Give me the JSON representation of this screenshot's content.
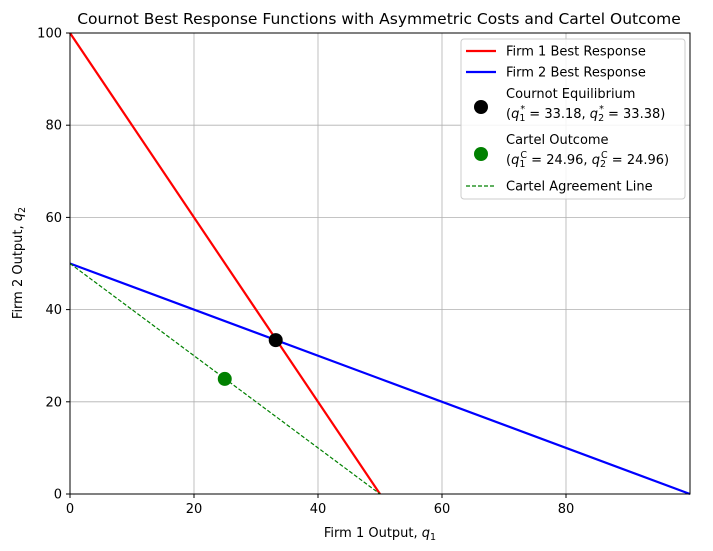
{
  "chart_data": {
    "type": "line",
    "title": "Cournot Best Response Functions with Asymmetric Costs and Cartel Outcome",
    "xlabel": "Firm 1 Output, q1",
    "ylabel": "Firm 2 Output, q2",
    "xlim": [
      0,
      100
    ],
    "ylim": [
      0,
      100
    ],
    "x_ticks": [
      0,
      20,
      40,
      60,
      80
    ],
    "y_ticks": [
      0,
      20,
      40,
      60,
      80,
      100
    ],
    "grid": true,
    "legend_position": "top-right",
    "series": [
      {
        "name": "Firm 1 Best Response",
        "kind": "line",
        "color": "#ff0000",
        "x": [
          0,
          50
        ],
        "y": [
          100,
          0
        ]
      },
      {
        "name": "Firm 2 Best Response",
        "kind": "line",
        "color": "#0000ff",
        "x": [
          0,
          100
        ],
        "y": [
          50,
          0
        ]
      },
      {
        "name": "Cartel Agreement Line",
        "kind": "dashed-line",
        "color": "#008000",
        "x": [
          0,
          50
        ],
        "y": [
          50,
          0
        ]
      },
      {
        "name": "Cournot Equilibrium",
        "kind": "point",
        "color": "#000000",
        "x": [
          33.18
        ],
        "y": [
          33.38
        ],
        "label_values": "q1* = 33.18, q2* = 33.38"
      },
      {
        "name": "Cartel Outcome",
        "kind": "point",
        "color": "#008000",
        "x": [
          24.96
        ],
        "y": [
          24.96
        ],
        "label_values": "q1C = 24.96, q2C = 24.96"
      }
    ]
  },
  "legend": {
    "firm1": "Firm 1 Best Response",
    "firm2": "Firm 2 Best Response",
    "cournot": "Cournot Equilibrium",
    "cournot_values": {
      "q1": "33.18",
      "q2": "33.38"
    },
    "cartel": "Cartel Outcome",
    "cartel_values": {
      "q1": "24.96",
      "q2": "24.96"
    },
    "cartel_line": "Cartel Agreement Line"
  }
}
